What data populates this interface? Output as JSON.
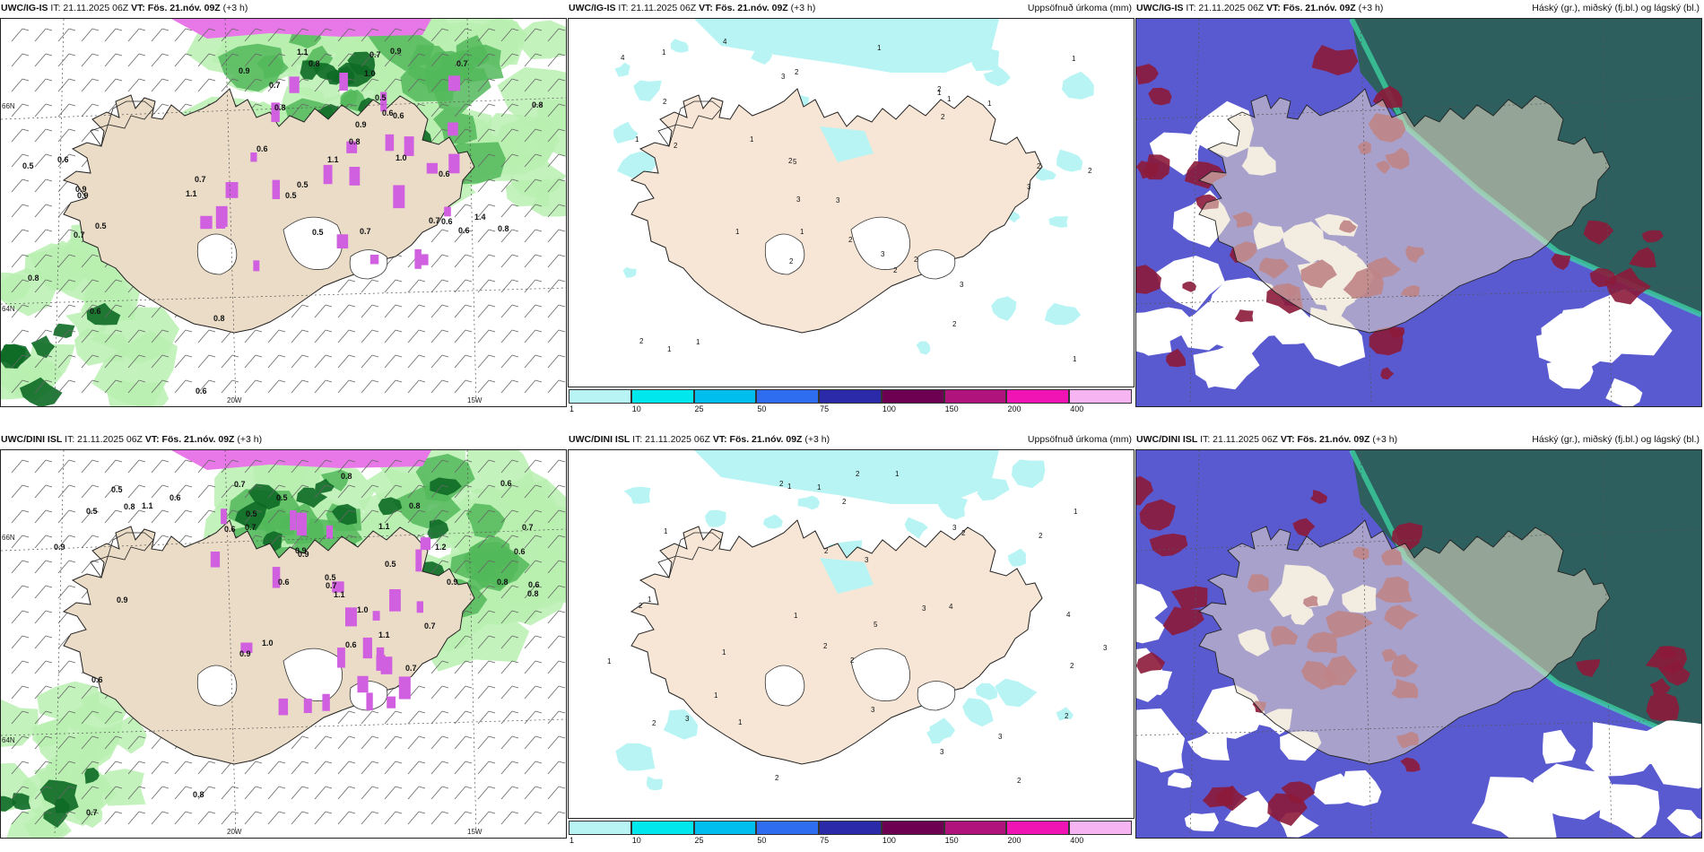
{
  "panels": [
    {
      "model": "UWC/IG-IS",
      "it": "IT: 21.11.2025 06Z",
      "vt": "VT: Fös. 21.nóv. 09Z",
      "lead": "(+3 h)",
      "right": ""
    },
    {
      "model": "UWC/IG-IS",
      "it": "IT: 21.11.2025 06Z",
      "vt": "VT: Fös. 21.nóv. 09Z",
      "lead": "(+3 h)",
      "right": "Uppsöfnuð úrkoma (mm)"
    },
    {
      "model": "UWC/IG-IS",
      "it": "IT: 21.11.2025 06Z",
      "vt": "VT: Fös. 21.nóv. 09Z",
      "lead": "(+3 h)",
      "right": "Háský (gr.), miðský (fj.bl.) og lágský (bl.)"
    },
    {
      "model": "UWC/DINI ISL",
      "it": "IT: 21.11.2025 06Z",
      "vt": "VT: Fös. 21.nóv. 09Z",
      "lead": "(+3 h)",
      "right": ""
    },
    {
      "model": "UWC/DINI ISL",
      "it": "IT: 21.11.2025 06Z",
      "vt": "VT: Fös. 21.nóv. 09Z",
      "lead": "(+3 h)",
      "right": "Uppsöfnuð úrkoma (mm)"
    },
    {
      "model": "UWC/DINI ISL",
      "it": "IT: 21.11.2025 06Z",
      "vt": "VT: Fös. 21.nóv. 09Z",
      "lead": "(+3 h)",
      "right": "Háský (gr.), miðský (fj.bl.) og lágský (bl.)"
    }
  ],
  "grid_labels": {
    "lat66": "66N",
    "lat64": "64N",
    "lon20": "20W",
    "lon15": "15W"
  },
  "colorbar": {
    "labels": [
      "1",
      "10",
      "25",
      "50",
      "75",
      "100",
      "150",
      "200",
      "400"
    ],
    "colors": [
      "#b8f4f4",
      "#00e8ee",
      "#00bfee",
      "#2e6cf0",
      "#2b2baa",
      "#6e0052",
      "#b0147c",
      "#f014b4",
      "#f6b4f2"
    ]
  },
  "precip_values": {
    "a": [
      "0.5",
      "0.7",
      "1.0",
      "0.6",
      "0.8",
      "1.1",
      "0.7",
      "0.9",
      "0.5",
      "0.6",
      "1.0",
      "0.8",
      "0.7",
      "0.6",
      "0.9",
      "0.8",
      "0.5",
      "0.6",
      "1.4",
      "0.8",
      "0.7",
      "1.1",
      "0.9",
      "0.6",
      "0.5",
      "0.7",
      "0.6",
      "0.8",
      "1.1",
      "0.9",
      "0.6",
      "0.7",
      "0.8",
      "0.5",
      "0.6",
      "0.7",
      "0.8",
      "0.9",
      "0.5",
      "0.6"
    ],
    "b": [
      "1.0",
      "0.7",
      "0.8",
      "1.1",
      "0.6",
      "0.5",
      "0.9",
      "1.0",
      "0.7",
      "0.6",
      "1.1",
      "0.5",
      "0.8",
      "0.7",
      "0.9",
      "1.2",
      "0.6",
      "0.5",
      "0.8",
      "0.7",
      "1.1",
      "0.6",
      "0.9",
      "0.5",
      "0.7",
      "0.8",
      "0.6",
      "0.9",
      "1.1",
      "0.5",
      "0.6",
      "0.7",
      "0.8",
      "0.5",
      "0.9",
      "0.6",
      "0.7",
      "0.8",
      "0.9",
      "0.6"
    ]
  },
  "rain_values": {
    "a": [
      "1",
      "3",
      "2",
      "4",
      "5",
      "3",
      "2",
      "1",
      "1",
      "2",
      "3",
      "2",
      "1",
      "1",
      "2",
      "4",
      "3",
      "2",
      "1",
      "2",
      "1",
      "1",
      "2",
      "3",
      "2",
      "1",
      "2",
      "1",
      "3",
      "2",
      "2",
      "1",
      "1",
      "2",
      "1",
      "2"
    ],
    "b": [
      "4",
      "3",
      "2",
      "1",
      "3",
      "2",
      "1",
      "4",
      "3",
      "5",
      "2",
      "1",
      "2",
      "3",
      "2",
      "1",
      "2",
      "3",
      "2",
      "1",
      "1",
      "2",
      "3",
      "2",
      "1",
      "2",
      "1",
      "3",
      "2",
      "1",
      "2",
      "2",
      "1",
      "2",
      "1",
      "3"
    ]
  }
}
